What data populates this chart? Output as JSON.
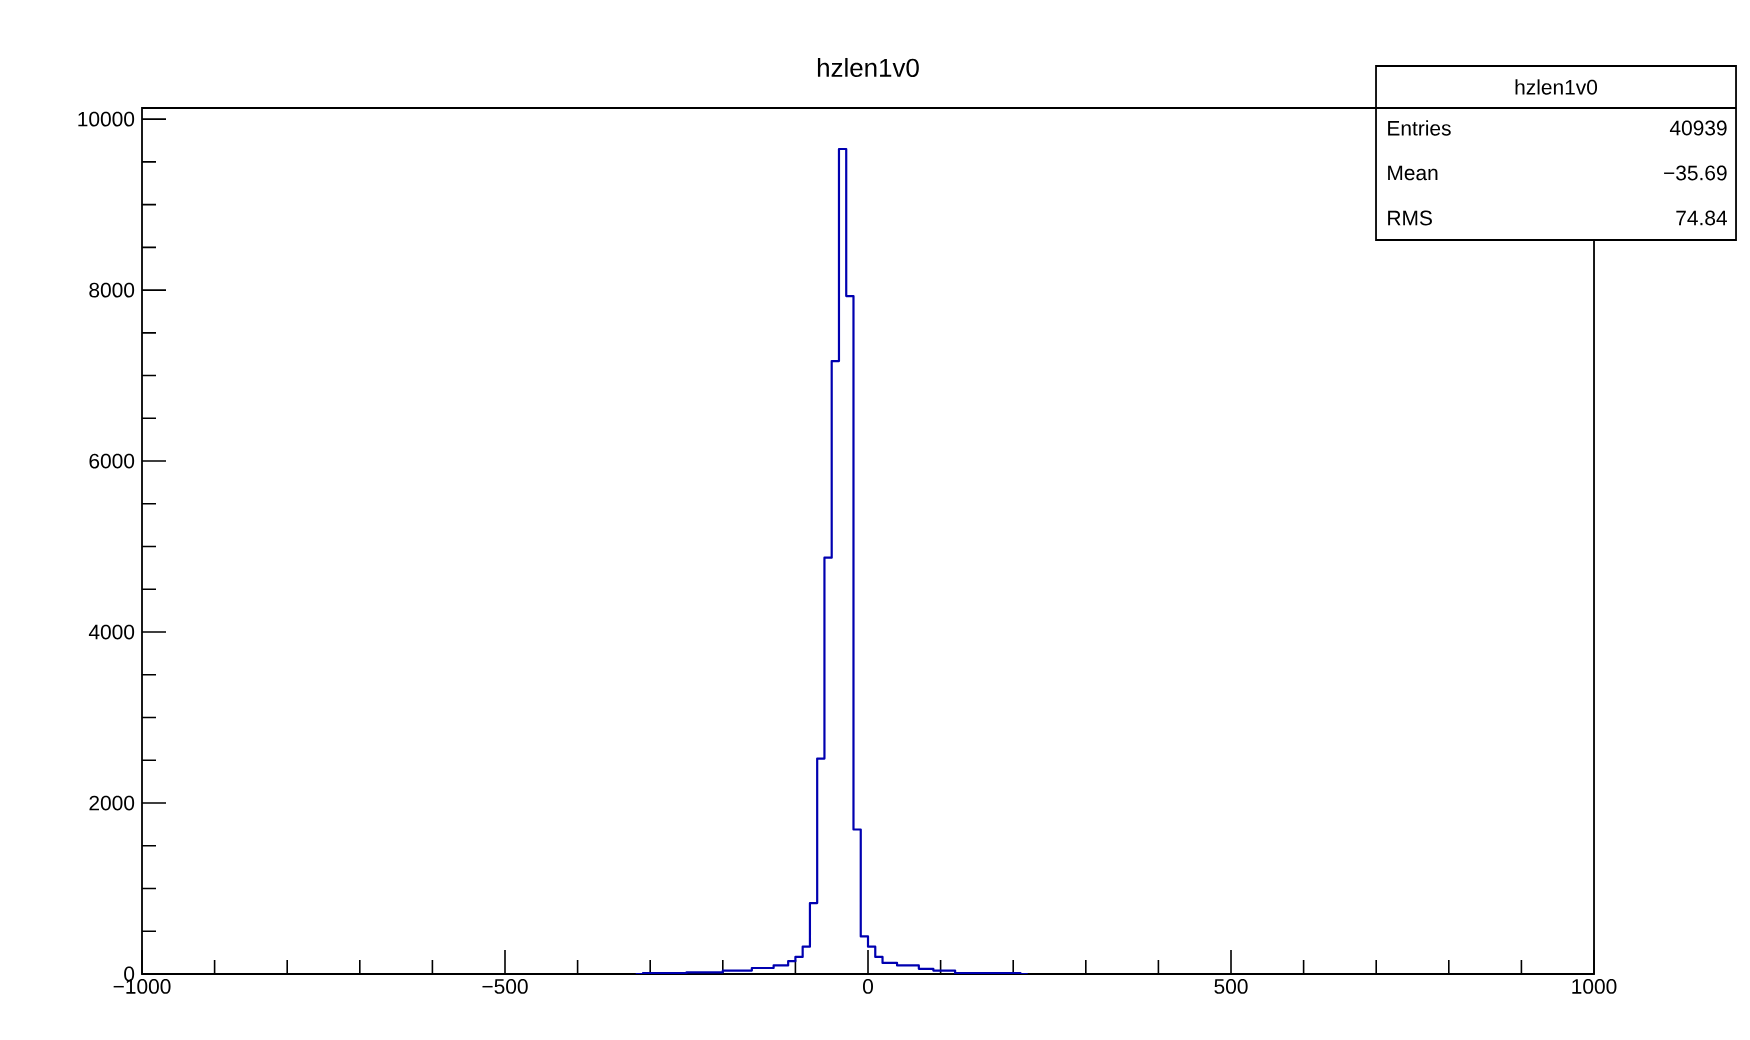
{
  "chart_data": {
    "type": "histogram",
    "title": "hzlen1v0",
    "bins": [
      -320,
      -310,
      -300,
      -290,
      -280,
      -270,
      -260,
      -250,
      -240,
      -230,
      -220,
      -210,
      -200,
      -190,
      -180,
      -170,
      -160,
      -150,
      -140,
      -130,
      -120,
      -110,
      -100,
      -90,
      -80,
      -70,
      -60,
      -50,
      -40,
      -30,
      -20,
      -10,
      0,
      10,
      20,
      30,
      40,
      50,
      60,
      70,
      80,
      90,
      100,
      110,
      120,
      130,
      140,
      150,
      160,
      170,
      180,
      190,
      200,
      210,
      220
    ],
    "values": [
      0,
      10,
      10,
      10,
      10,
      10,
      10,
      20,
      20,
      20,
      20,
      20,
      40,
      40,
      40,
      40,
      70,
      70,
      70,
      100,
      100,
      150,
      200,
      320,
      830,
      2520,
      4870,
      7170,
      9650,
      7930,
      1690,
      440,
      320,
      200,
      130,
      130,
      100,
      100,
      100,
      60,
      60,
      40,
      40,
      40,
      10,
      10,
      10,
      10,
      10,
      10,
      10,
      10,
      10,
      0
    ],
    "color": "#0000b0",
    "xlim": [
      -1000,
      1000
    ],
    "ylim": [
      0,
      10130
    ],
    "xticks": [
      {
        "value": -1000,
        "label": "−1000"
      },
      {
        "value": -500,
        "label": "−500"
      },
      0,
      500,
      1000
    ],
    "yticks": [
      0,
      2000,
      4000,
      6000,
      8000,
      10000
    ],
    "annotations": [
      "hzlen1v0",
      "Entries",
      "40939",
      "Mean",
      "−35.69",
      "RMS",
      "74.84"
    ]
  }
}
